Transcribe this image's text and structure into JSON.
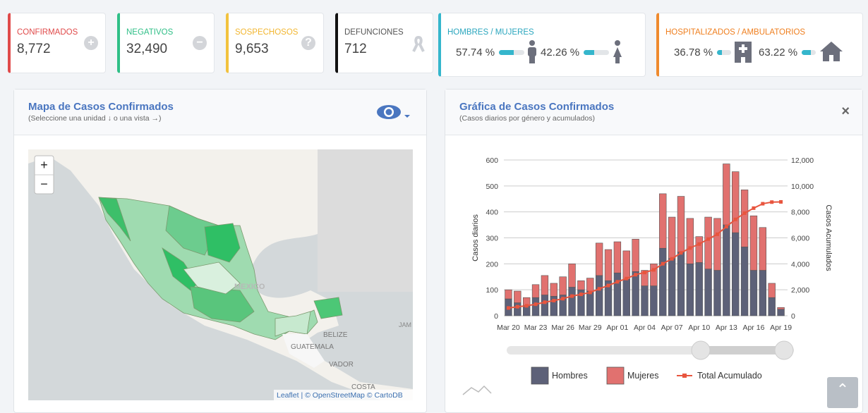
{
  "cards": [
    {
      "label": "CONFIRMADOS",
      "value": "8,772"
    },
    {
      "label": "NEGATIVOS",
      "value": "32,490"
    },
    {
      "label": "SOSPECHOSOS",
      "value": "9,653"
    },
    {
      "label": "DEFUNCIONES",
      "value": "712"
    }
  ],
  "gender_card": {
    "label": "HOMBRES / MUJERES",
    "men": "57.74 %",
    "women": "42.26 %"
  },
  "hosp_card": {
    "label": "HOSPITALIZADOS / AMBULATORIOS",
    "hospitalized": "36.78 %",
    "ambulatory": "63.22 %"
  },
  "map_panel": {
    "title": "Mapa de Casos Confirmados",
    "subtitle": "(Seleccione una unidad ↓ o una vista →)",
    "zoom_in": "+",
    "zoom_out": "−",
    "places": [
      "MEXICO",
      "BELIZE",
      "GUATEMALA",
      "VADOR",
      "JAM",
      "COSTA"
    ],
    "attribution": "Leaflet | © OpenStreetMap © CartoDB"
  },
  "chart_panel": {
    "title": "Gráfica de Casos Confirmados",
    "subtitle": "(Casos diarios por género y acumulados)",
    "close": "×"
  },
  "chart_data": {
    "type": "bar",
    "stacked": true,
    "categories": [
      "Mar 20",
      null,
      null,
      "Mar 23",
      null,
      null,
      "Mar 26",
      null,
      null,
      "Mar 29",
      null,
      null,
      "Apr 01",
      null,
      null,
      "Apr 04",
      null,
      null,
      "Apr 07",
      null,
      null,
      "Apr 10",
      null,
      null,
      "Apr 13",
      null,
      null,
      "Apr 16",
      null,
      null,
      "Apr 19"
    ],
    "series": [
      {
        "name": "Hombres",
        "color": "#5d6178",
        "values": [
          65,
          50,
          40,
          70,
          80,
          75,
          80,
          110,
          100,
          95,
          155,
          135,
          165,
          140,
          170,
          115,
          115,
          260,
          220,
          245,
          200,
          205,
          180,
          175,
          350,
          320,
          265,
          175,
          175,
          70,
          25
        ]
      },
      {
        "name": "Mujeres",
        "color": "#e1716f",
        "values": [
          35,
          45,
          30,
          50,
          75,
          50,
          70,
          90,
          35,
          50,
          125,
          120,
          120,
          110,
          125,
          60,
          85,
          210,
          160,
          215,
          175,
          100,
          200,
          200,
          235,
          235,
          220,
          210,
          165,
          55,
          7
        ]
      },
      {
        "name": "Total Acumulado",
        "type": "line",
        "axis": "y2",
        "color": "#e8553e",
        "values": [
          600,
          695,
          765,
          885,
          1040,
          1165,
          1315,
          1515,
          1650,
          1795,
          2075,
          2330,
          2615,
          2865,
          3160,
          3335,
          3535,
          4005,
          4385,
          4845,
          5220,
          5525,
          5905,
          6280,
          6865,
          7420,
          7905,
          8290,
          8630,
          8755,
          8772
        ]
      }
    ],
    "ylim": [
      0,
      600
    ],
    "yticks": [
      0,
      100,
      200,
      300,
      400,
      500,
      600
    ],
    "y2lim": [
      0,
      12000
    ],
    "y2ticks": [
      0,
      {
        "value": 2000,
        "label": "2,000"
      },
      {
        "value": 4000,
        "label": "4,000"
      },
      {
        "value": 6000,
        "label": "6,000"
      },
      {
        "value": 8000,
        "label": "8,000"
      },
      {
        "value": 10000,
        "label": "10,000"
      },
      {
        "value": 12000,
        "label": "12,000"
      }
    ],
    "ylabel": "Casos diarios",
    "y2label": "Casos Acumulados",
    "grid": true,
    "legend": "bottom"
  }
}
